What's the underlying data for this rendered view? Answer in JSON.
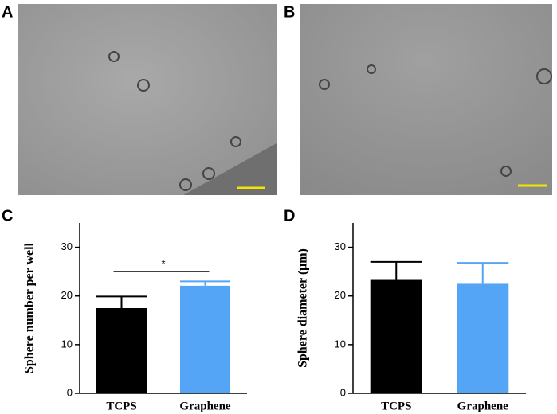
{
  "panel_labels": [
    "A",
    "B",
    "C",
    "D"
  ],
  "chart_data": [
    {
      "type": "bar",
      "ylabel": "Sphere number per well",
      "categories": [
        "TCPS",
        "Graphene"
      ],
      "values": [
        17.5,
        22.1
      ],
      "errors": [
        2.4,
        0.9
      ],
      "colors": [
        "#000000",
        "#55a5f7"
      ],
      "ylim": [
        0,
        35
      ],
      "yticks": [
        0,
        10,
        20,
        30
      ],
      "significance": "*"
    },
    {
      "type": "bar",
      "ylabel": "Sphere diameter (μm)",
      "categories": [
        "TCPS",
        "Graphene"
      ],
      "values": [
        23.3,
        22.5
      ],
      "errors": [
        3.7,
        4.3
      ],
      "colors": [
        "#000000",
        "#55a5f7"
      ],
      "ylim": [
        0,
        35
      ],
      "yticks": [
        0,
        10,
        20,
        30
      ]
    }
  ]
}
